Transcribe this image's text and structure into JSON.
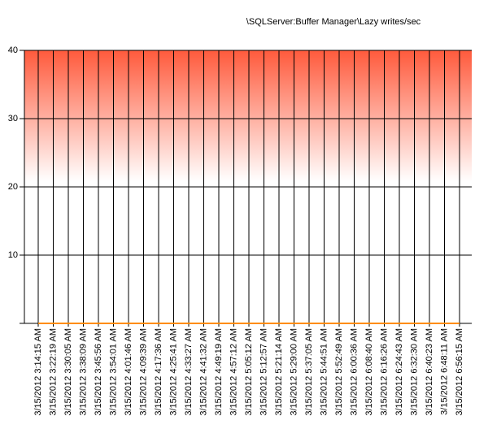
{
  "chart_data": {
    "type": "line",
    "title": "\\SQLServer:Buffer Manager\\Lazy writes/sec",
    "categories": [
      "3/15/2012 3:14:15 AM",
      "3/15/2012 3:22:19 AM",
      "3/15/2012 3:30:05 AM",
      "3/15/2012 3:38:09 AM",
      "3/15/2012 3:45:56 AM",
      "3/15/2012 3:54:01 AM",
      "3/15/2012 4:01:46 AM",
      "3/15/2012 4:09:39 AM",
      "3/15/2012 4:17:36 AM",
      "3/15/2012 4:25:41 AM",
      "3/15/2012 4:33:27 AM",
      "3/15/2012 4:41:32 AM",
      "3/15/2012 4:49:19 AM",
      "3/15/2012 4:57:12 AM",
      "3/15/2012 5:05:12 AM",
      "3/15/2012 5:12:57 AM",
      "3/15/2012 5:21:14 AM",
      "3/15/2012 5:29:00 AM",
      "3/15/2012 5:37:05 AM",
      "3/15/2012 5:44:51 AM",
      "3/15/2012 5:52:49 AM",
      "3/15/2012 6:00:36 AM",
      "3/15/2012 6:08:40 AM",
      "3/15/2012 6:16:26 AM",
      "3/15/2012 6:24:43 AM",
      "3/15/2012 6:32:30 AM",
      "3/15/2012 6:40:23 AM",
      "3/15/2012 6:48:11 AM",
      "3/15/2012 6:56:15 AM"
    ],
    "values": [
      0,
      0,
      0,
      0,
      0,
      0,
      0,
      0,
      0,
      0,
      0,
      0,
      0,
      0,
      0,
      0,
      0,
      0,
      0,
      0,
      0,
      0,
      0,
      0,
      0,
      0,
      0,
      0,
      0
    ],
    "color": "#ff8c00",
    "ylim": [
      0,
      40
    ],
    "yticks": [
      10,
      20,
      30,
      40
    ],
    "grid": true
  }
}
